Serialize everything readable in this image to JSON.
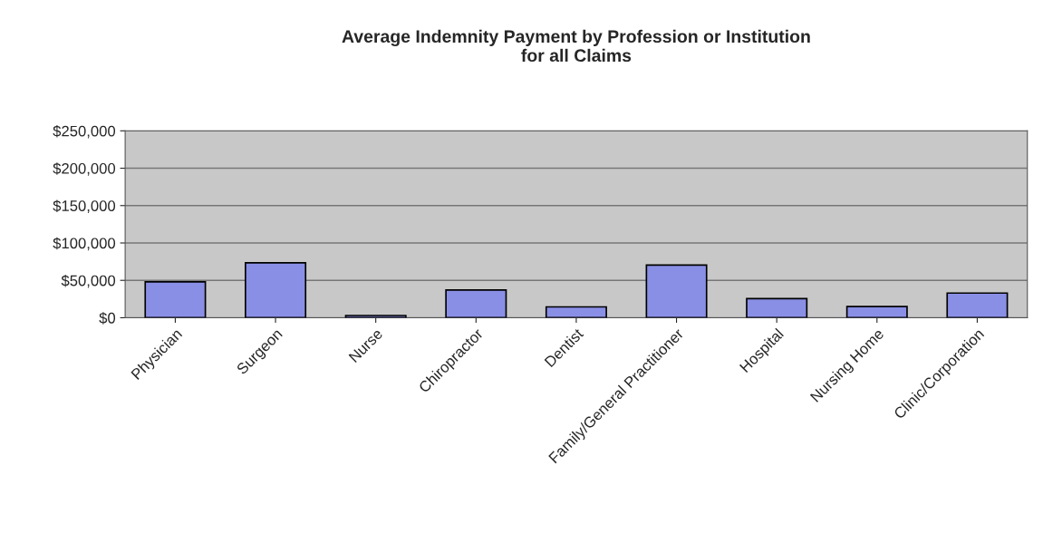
{
  "chart_data": {
    "type": "bar",
    "title": "Average Indemnity Payment by Profession or Institution\nfor all Claims",
    "categories": [
      "Physician",
      "Surgeon",
      "Nurse",
      "Chiropractor",
      "Dentist",
      "Family/General Practitioner",
      "Hospital",
      "Nursing Home",
      "Clinic/Corporation"
    ],
    "values": [
      48000,
      73500,
      3000,
      37000,
      14500,
      70500,
      25500,
      15000,
      33000
    ],
    "color": "#8a8fe6",
    "ylim": [
      0,
      250000
    ],
    "yticks": [
      {
        "value": 0,
        "label": "$0"
      },
      {
        "value": 50000,
        "label": "$50,000"
      },
      {
        "value": 100000,
        "label": "$100,000"
      },
      {
        "value": 150000,
        "label": "$150,000"
      },
      {
        "value": 200000,
        "label": "$200,000"
      },
      {
        "value": 250000,
        "label": "$250,000"
      }
    ],
    "grid": "y"
  }
}
